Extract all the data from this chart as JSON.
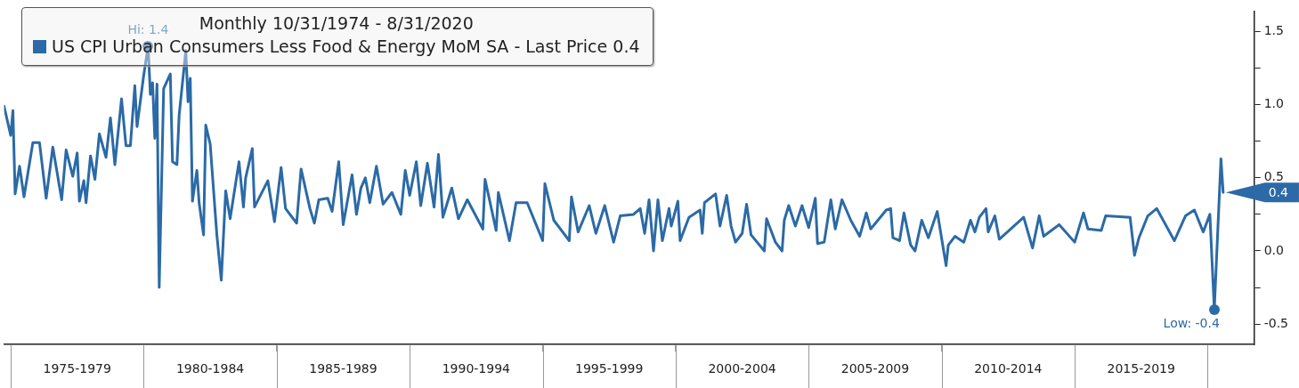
{
  "chart_data": {
    "type": "line",
    "title": "Monthly 10/31/1974 - 8/31/2020",
    "legend": "top left",
    "grid": false,
    "xlim": [
      "1974-10",
      "2021-10"
    ],
    "ylim": [
      -0.64,
      1.64
    ],
    "xticks": [
      {
        "value": "1975-01",
        "label": null
      },
      {
        "value": "1977-07",
        "label": "1975-1979"
      },
      {
        "value": "1980-01",
        "label": null
      },
      {
        "value": "1982-07",
        "label": "1980-1984"
      },
      {
        "value": "1985-01",
        "label": null
      },
      {
        "value": "1987-07",
        "label": "1985-1989"
      },
      {
        "value": "1990-01",
        "label": null
      },
      {
        "value": "1992-07",
        "label": "1990-1994"
      },
      {
        "value": "1995-01",
        "label": null
      },
      {
        "value": "1997-07",
        "label": "1995-1999"
      },
      {
        "value": "2000-01",
        "label": null
      },
      {
        "value": "2002-07",
        "label": "2000-2004"
      },
      {
        "value": "2005-01",
        "label": null
      },
      {
        "value": "2007-07",
        "label": "2005-2009"
      },
      {
        "value": "2010-01",
        "label": null
      },
      {
        "value": "2012-07",
        "label": "2010-2014"
      },
      {
        "value": "2015-01",
        "label": null
      },
      {
        "value": "2017-07",
        "label": "2015-2019"
      },
      {
        "value": "2020-01",
        "label": null
      }
    ],
    "yticks": [
      {
        "value": 1.5,
        "label": "1.5"
      },
      {
        "value": 1.25,
        "label": null
      },
      {
        "value": 1,
        "label": "1.0"
      },
      {
        "value": 0.75,
        "label": null
      },
      {
        "value": 0.5,
        "label": "0.5"
      },
      {
        "value": 0.25,
        "label": null
      },
      {
        "value": 0,
        "label": "0.0"
      },
      {
        "value": -0.25,
        "label": null
      },
      {
        "value": -0.5,
        "label": "-0.5"
      }
    ],
    "annotations": [
      {
        "text": "Hi: 1.4",
        "x": "1980-03",
        "y": 1.4
      },
      {
        "text": "Low: -0.4",
        "x": "2020-04",
        "y": -0.4
      },
      {
        "text": "0.4",
        "x": "2020-08",
        "y": 0.4
      }
    ],
    "series": [
      {
        "name": "US CPI Urban Consumers Less Food & Energy MoM SA - Last Price 0.4",
        "color": "#2b6aa6",
        "x": [
          "1974-10",
          "1975-01",
          "1975-02",
          "1975-03",
          "1975-05",
          "1975-07",
          "1975-11",
          "1976-02",
          "1976-05",
          "1976-08",
          "1976-12",
          "1977-02",
          "1977-05",
          "1977-07",
          "1977-08",
          "1977-10",
          "1977-11",
          "1978-01",
          "1978-03",
          "1978-05",
          "1978-08",
          "1978-10",
          "1978-12",
          "1979-03",
          "1979-05",
          "1979-07",
          "1979-09",
          "1979-10",
          "1980-01",
          "1980-03",
          "1980-04",
          "1980-05",
          "1980-06",
          "1980-07",
          "1980-08",
          "1980-10",
          "1981-01",
          "1981-02",
          "1981-04",
          "1981-05",
          "1981-08",
          "1981-09",
          "1981-10",
          "1981-11",
          "1982-01",
          "1982-02",
          "1982-04",
          "1982-05",
          "1982-07",
          "1982-10",
          "1982-12",
          "1983-02",
          "1983-04",
          "1983-08",
          "1983-10",
          "1983-11",
          "1984-02",
          "1984-03",
          "1984-09",
          "1984-12",
          "1985-03",
          "1985-05",
          "1985-10",
          "1985-12",
          "1986-04",
          "1986-06",
          "1986-08",
          "1986-12",
          "1987-02",
          "1987-05",
          "1987-07",
          "1987-11",
          "1988-01",
          "1988-03",
          "1988-05",
          "1988-07",
          "1988-10",
          "1989-01",
          "1989-05",
          "1989-09",
          "1989-11",
          "1990-01",
          "1990-04",
          "1990-06",
          "1990-09",
          "1990-12",
          "1991-02",
          "1991-04",
          "1991-08",
          "1991-11",
          "1992-03",
          "1992-10",
          "1992-11",
          "1993-04",
          "1993-05",
          "1993-10",
          "1994-01",
          "1994-06",
          "1995-01",
          "1995-02",
          "1995-06",
          "1996-01",
          "1996-02",
          "1996-05",
          "1996-10",
          "1997-01",
          "1997-05",
          "1997-09",
          "1997-12",
          "1998-06",
          "1998-09",
          "1998-11",
          "1999-01",
          "1999-03",
          "1999-05",
          "1999-07",
          "1999-10",
          "1999-11",
          "2000-02",
          "2000-03",
          "2000-07",
          "2000-12",
          "2001-01",
          "2001-02",
          "2001-07",
          "2001-09",
          "2001-12",
          "2002-02",
          "2002-04",
          "2002-07",
          "2002-09",
          "2002-11",
          "2003-05",
          "2003-06",
          "2003-10",
          "2004-01",
          "2004-02",
          "2004-04",
          "2004-07",
          "2004-10",
          "2005-01",
          "2005-04",
          "2005-05",
          "2005-08",
          "2005-11",
          "2006-01",
          "2006-04",
          "2006-08",
          "2006-12",
          "2007-03",
          "2007-05",
          "2007-12",
          "2008-02",
          "2008-03",
          "2008-06",
          "2008-08",
          "2008-11",
          "2009-01",
          "2009-04",
          "2009-07",
          "2009-11",
          "2010-03",
          "2010-04",
          "2010-07",
          "2010-11",
          "2011-02",
          "2011-04",
          "2011-06",
          "2011-09",
          "2011-10",
          "2012-01",
          "2012-03",
          "2013-02",
          "2013-06",
          "2013-09",
          "2013-11",
          "2014-06",
          "2015-01",
          "2015-05",
          "2015-07",
          "2016-01",
          "2016-03",
          "2017-02",
          "2017-04",
          "2017-06",
          "2017-10",
          "2018-02",
          "2018-10",
          "2019-03",
          "2019-07",
          "2019-11",
          "2020-02",
          "2020-04",
          "2020-07",
          "2020-08"
        ],
        "values": [
          0.99,
          0.79,
          0.96,
          0.39,
          0.58,
          0.37,
          0.74,
          0.74,
          0.36,
          0.71,
          0.35,
          0.69,
          0.51,
          0.67,
          0.34,
          0.48,
          0.33,
          0.65,
          0.49,
          0.8,
          0.64,
          0.91,
          0.59,
          1.04,
          0.72,
          0.72,
          1.13,
          0.85,
          1.2,
          1.4,
          1.07,
          1.15,
          0.77,
          1.14,
          -0.25,
          1.11,
          1.21,
          0.61,
          0.59,
          0.93,
          1.37,
          1.02,
          1.18,
          0.34,
          0.55,
          0.33,
          0.11,
          0.86,
          0.73,
          0.11,
          -0.2,
          0.41,
          0.22,
          0.61,
          0.3,
          0.5,
          0.7,
          0.3,
          0.48,
          0.2,
          0.57,
          0.29,
          0.19,
          0.56,
          0.29,
          0.19,
          0.35,
          0.36,
          0.27,
          0.61,
          0.18,
          0.52,
          0.25,
          0.43,
          0.5,
          0.33,
          0.58,
          0.32,
          0.4,
          0.25,
          0.55,
          0.38,
          0.61,
          0.31,
          0.6,
          0.3,
          0.66,
          0.23,
          0.43,
          0.22,
          0.35,
          0.15,
          0.49,
          0.14,
          0.4,
          0.07,
          0.33,
          0.33,
          0.07,
          0.46,
          0.21,
          0.07,
          0.37,
          0.13,
          0.31,
          0.12,
          0.31,
          0.06,
          0.24,
          0.25,
          0.29,
          0.12,
          0.35,
          0.0,
          0.35,
          0.07,
          0.29,
          0.17,
          0.34,
          0.07,
          0.23,
          0.28,
          0.12,
          0.33,
          0.39,
          0.17,
          0.38,
          0.17,
          0.06,
          0.12,
          0.32,
          0.11,
          0.0,
          0.22,
          0.06,
          0.0,
          0.21,
          0.31,
          0.17,
          0.31,
          0.16,
          0.36,
          0.05,
          0.06,
          0.35,
          0.15,
          0.35,
          0.21,
          0.1,
          0.26,
          0.15,
          0.28,
          0.29,
          0.09,
          0.07,
          0.26,
          0.04,
          0.0,
          0.21,
          0.09,
          0.27,
          -0.1,
          0.04,
          0.1,
          0.06,
          0.21,
          0.13,
          0.23,
          0.29,
          0.13,
          0.24,
          0.08,
          0.23,
          0.02,
          0.24,
          0.1,
          0.18,
          0.06,
          0.26,
          0.15,
          0.14,
          0.24,
          0.23,
          -0.03,
          0.09,
          0.24,
          0.29,
          0.07,
          0.24,
          0.28,
          0.13,
          0.25,
          -0.4,
          0.63,
          0.4
        ]
      }
    ]
  }
}
